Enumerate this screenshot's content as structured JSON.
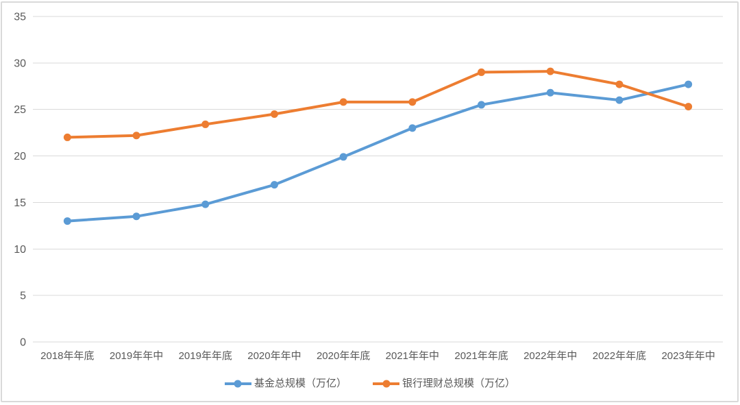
{
  "chart_data": {
    "type": "line",
    "title": "",
    "xlabel": "",
    "ylabel": "",
    "categories": [
      "2018年年底",
      "2019年年中",
      "2019年年底",
      "2020年年中",
      "2020年年底",
      "2021年年中",
      "2021年年底",
      "2022年年中",
      "2022年年底",
      "2023年年中"
    ],
    "series": [
      {
        "name": "基金总规模（万亿）",
        "color": "#5B9BD5",
        "values": [
          13.0,
          13.5,
          14.8,
          16.9,
          19.9,
          23.0,
          25.5,
          26.8,
          26.0,
          27.7
        ]
      },
      {
        "name": "银行理财总规模（万亿）",
        "color": "#ED7D31",
        "values": [
          22.0,
          22.2,
          23.4,
          24.5,
          25.8,
          25.8,
          29.0,
          29.1,
          27.7,
          25.3
        ]
      }
    ],
    "ylim": [
      0,
      35
    ],
    "y_ticks": [
      0,
      5,
      10,
      15,
      20,
      25,
      30,
      35
    ],
    "grid": "horizontal",
    "legend_position": "bottom",
    "colors": {
      "gridline": "#D9D9D9",
      "axis_text": "#595959",
      "background": "#FFFFFF",
      "border": "#D9D9D9"
    }
  }
}
